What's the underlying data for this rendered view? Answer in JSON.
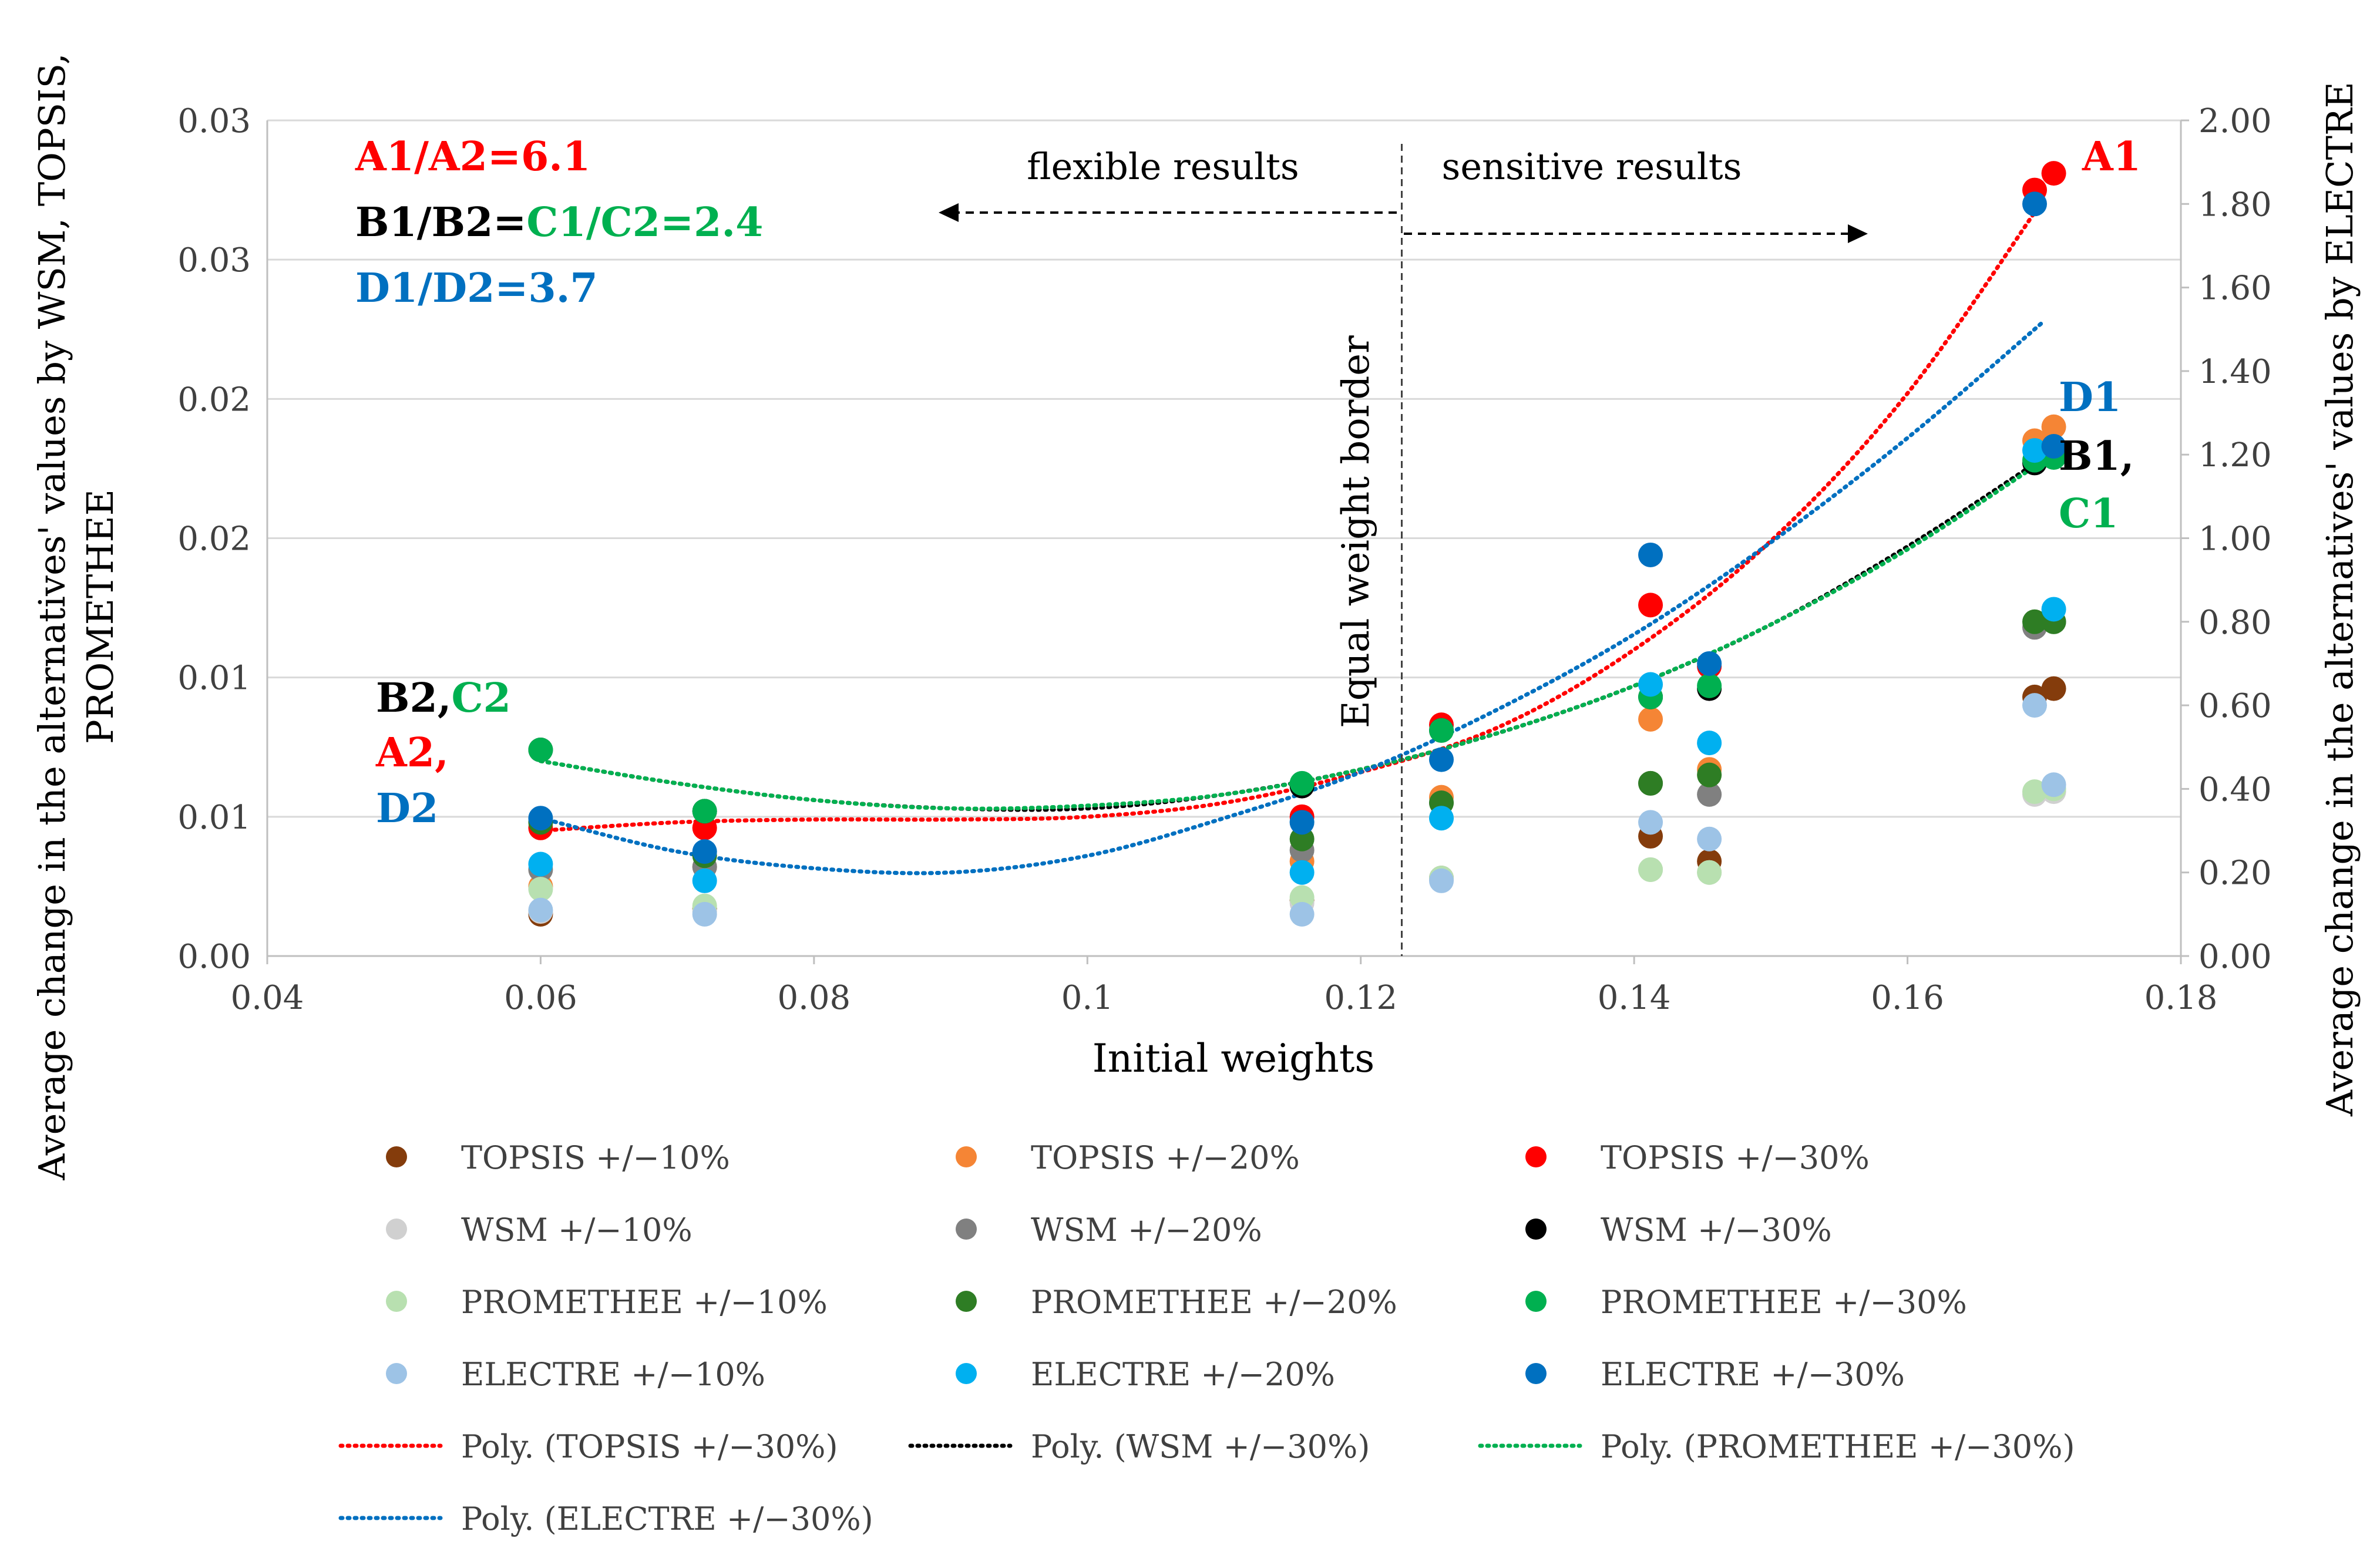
{
  "chart_data": {
    "type": "scatter",
    "title": "",
    "xlabel": "Initial weights",
    "ylabel_left": "Average change in the alternatives' values by WSM, TOPSIS, PROMETHEE",
    "ylabel_right": "Average change in the alternatives' values  by ELECTRE",
    "xlim": [
      0.04,
      0.18
    ],
    "ylim_left": [
      0,
      0.03
    ],
    "ylim_right": [
      0,
      2.0
    ],
    "x_ticks": [
      "0.04",
      "0.06",
      "0.08",
      "0.1",
      "0.12",
      "0.14",
      "0.16",
      "0.18"
    ],
    "y_left_ticks": [
      "0.00",
      "0.01",
      "0.01",
      "0.02",
      "0.02",
      "0.03",
      "0.03"
    ],
    "y_right_ticks": [
      "0.00",
      "0.20",
      "0.40",
      "0.60",
      "0.80",
      "1.00",
      "1.20",
      "1.40",
      "1.60",
      "1.80",
      "2.00"
    ],
    "grid": true,
    "legend_position": "bottom",
    "series": [
      {
        "name": "TOPSIS +/−10%",
        "color": "#843c0c",
        "axis": "left",
        "x": [
          0.06,
          0.072,
          0.1157,
          0.1259,
          0.1412,
          0.1455,
          0.1693,
          0.1707
        ],
        "y": [
          0.0015,
          0.0017,
          0.002,
          0.0028,
          0.0043,
          0.0034,
          0.0093,
          0.0096
        ]
      },
      {
        "name": "TOPSIS +/−20%",
        "color": "#f58535",
        "axis": "left",
        "x": [
          0.06,
          0.072,
          0.1157,
          0.1259,
          0.1412,
          0.1455,
          0.1693,
          0.1707
        ],
        "y": [
          0.0025,
          0.0032,
          0.0034,
          0.0057,
          0.0085,
          0.0067,
          0.0185,
          0.019
        ]
      },
      {
        "name": "TOPSIS +/−30%",
        "color": "#ff0000",
        "axis": "left",
        "x": [
          0.06,
          0.072,
          0.1157,
          0.1259,
          0.1412,
          0.1455,
          0.1693,
          0.1707
        ],
        "y": [
          0.0046,
          0.0046,
          0.005,
          0.0083,
          0.0126,
          0.0104,
          0.0275,
          0.0281
        ]
      },
      {
        "name": "WSM +/−10%",
        "color": "#d0d0d0",
        "axis": "left",
        "x": [
          0.06,
          0.072,
          0.1157,
          0.1259,
          0.1412,
          0.1455,
          0.1693,
          0.1707
        ],
        "y": [
          0.0016,
          0.0016,
          0.0019,
          0.0028,
          0.0031,
          0.003,
          0.0058,
          0.0059
        ]
      },
      {
        "name": "WSM +/−20%",
        "color": "#808080",
        "axis": "left",
        "x": [
          0.06,
          0.072,
          0.1157,
          0.1259,
          0.1412,
          0.1455,
          0.1693,
          0.1707
        ],
        "y": [
          0.0031,
          0.0032,
          0.0038,
          0.0055,
          0.0062,
          0.0058,
          0.0118,
          0.012
        ]
      },
      {
        "name": "WSM +/−30%",
        "color": "#000000",
        "axis": "left",
        "x": [
          0.06,
          0.072,
          0.1157,
          0.1259,
          0.1412,
          0.1455,
          0.1693,
          0.1707
        ],
        "y": [
          0.0074,
          0.0052,
          0.0061,
          0.0081,
          0.0093,
          0.0096,
          0.0177,
          0.018
        ]
      },
      {
        "name": "PROMETHEE +/−10%",
        "color": "#b8e0b0",
        "axis": "left",
        "x": [
          0.06,
          0.072,
          0.1157,
          0.1259,
          0.1412,
          0.1455,
          0.1693,
          0.1707
        ],
        "y": [
          0.0024,
          0.0018,
          0.0021,
          0.0028,
          0.0031,
          0.003,
          0.0059,
          0.006
        ]
      },
      {
        "name": "PROMETHEE +/−20%",
        "color": "#2e7d24",
        "axis": "left",
        "x": [
          0.06,
          0.072,
          0.1157,
          0.1259,
          0.1412,
          0.1455,
          0.1693,
          0.1707
        ],
        "y": [
          0.0048,
          0.0036,
          0.0042,
          0.0055,
          0.0062,
          0.0065,
          0.012,
          0.012
        ]
      },
      {
        "name": "PROMETHEE +/−30%",
        "color": "#00b050",
        "axis": "left",
        "x": [
          0.06,
          0.072,
          0.1157,
          0.1259,
          0.1412,
          0.1455,
          0.1693,
          0.1707
        ],
        "y": [
          0.0074,
          0.0052,
          0.0062,
          0.0081,
          0.0093,
          0.0097,
          0.0178,
          0.0179
        ]
      },
      {
        "name": "ELECTRE +/−10%",
        "color": "#9dc3e6",
        "axis": "right",
        "x": [
          0.06,
          0.072,
          0.1157,
          0.1259,
          0.1412,
          0.1455,
          0.1693,
          0.1707
        ],
        "y": [
          0.11,
          0.1,
          0.1,
          0.18,
          0.32,
          0.28,
          0.6,
          0.41
        ]
      },
      {
        "name": "ELECTRE +/−20%",
        "color": "#00b0f0",
        "axis": "right",
        "x": [
          0.06,
          0.072,
          0.1157,
          0.1259,
          0.1412,
          0.1455,
          0.1693,
          0.1707
        ],
        "y": [
          0.22,
          0.18,
          0.2,
          0.33,
          0.65,
          0.51,
          1.21,
          0.83
        ]
      },
      {
        "name": "ELECTRE +/−30%",
        "color": "#0070c0",
        "axis": "right",
        "x": [
          0.06,
          0.072,
          0.1157,
          0.1259,
          0.1412,
          0.1455,
          0.1693,
          0.1707
        ],
        "y": [
          0.33,
          0.25,
          0.32,
          0.47,
          0.96,
          0.7,
          1.8,
          1.22
        ]
      }
    ],
    "trendlines": [
      {
        "name": "Poly. (TOPSIS +/−30%)",
        "color": "#ff0000",
        "axis": "left",
        "x": [
          0.06,
          0.07,
          0.08,
          0.09,
          0.1,
          0.11,
          0.12,
          0.13,
          0.14,
          0.15,
          0.16,
          0.17
        ],
        "y": [
          0.0045,
          0.0048,
          0.0049,
          0.0049,
          0.005,
          0.0055,
          0.0066,
          0.0082,
          0.011,
          0.0149,
          0.0202,
          0.0272
        ]
      },
      {
        "name": "Poly. (WSM +/−30%)",
        "color": "#000000",
        "axis": "left",
        "x": [
          0.06,
          0.07,
          0.08,
          0.09,
          0.1,
          0.11,
          0.12,
          0.13,
          0.14,
          0.15,
          0.16,
          0.17
        ],
        "y": [
          0.007,
          0.0062,
          0.0056,
          0.0053,
          0.0053,
          0.0058,
          0.0067,
          0.008,
          0.0097,
          0.0119,
          0.0147,
          0.0179
        ]
      },
      {
        "name": "Poly. (PROMETHEE +/−30%)",
        "color": "#00b050",
        "axis": "left",
        "x": [
          0.06,
          0.07,
          0.08,
          0.09,
          0.1,
          0.11,
          0.12,
          0.13,
          0.14,
          0.15,
          0.16,
          0.17
        ],
        "y": [
          0.007,
          0.0062,
          0.0056,
          0.0053,
          0.0054,
          0.0058,
          0.0067,
          0.008,
          0.0097,
          0.0119,
          0.0146,
          0.0178
        ]
      },
      {
        "name": "Poly. (ELECTRE +/−30%)",
        "color": "#0070c0",
        "axis": "right",
        "x": [
          0.06,
          0.07,
          0.08,
          0.09,
          0.1,
          0.11,
          0.12,
          0.13,
          0.14,
          0.15,
          0.16,
          0.17
        ],
        "y": [
          0.33,
          0.25,
          0.21,
          0.2,
          0.24,
          0.33,
          0.44,
          0.59,
          0.77,
          0.99,
          1.24,
          1.52
        ]
      }
    ],
    "annotations": {
      "ratio_a": "A1/A2=6.1",
      "ratio_b": "B1/B2=",
      "ratio_c": "C1/C2=2.4",
      "ratio_d": "D1/D2=3.7",
      "flexible": "flexible results",
      "sensitive": "sensitive results",
      "equal_border": "Equal weight border",
      "equal_border_x": 0.123,
      "a1": "A1",
      "d1": "D1",
      "b1": "B1,",
      "c1": "C1",
      "b2": "B2,",
      "c2": "C2",
      "a2": "A2,",
      "d2": "D2"
    },
    "colors": {
      "red": "#ff0000",
      "black": "#000000",
      "green": "#00b050",
      "blue": "#0070c0",
      "grid": "#d9d9d9",
      "axis": "#bfbfbf",
      "text": "#404040"
    }
  }
}
